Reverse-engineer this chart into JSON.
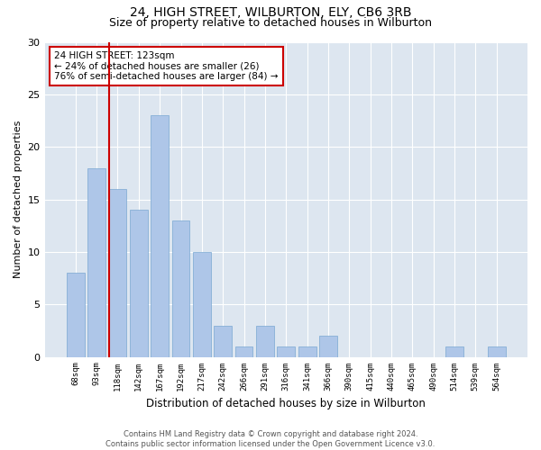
{
  "title": "24, HIGH STREET, WILBURTON, ELY, CB6 3RB",
  "subtitle": "Size of property relative to detached houses in Wilburton",
  "xlabel": "Distribution of detached houses by size in Wilburton",
  "ylabel": "Number of detached properties",
  "bar_values": [
    8,
    18,
    16,
    14,
    23,
    13,
    10,
    3,
    1,
    3,
    1,
    1,
    2,
    0,
    0,
    0,
    0,
    0,
    1,
    0,
    1
  ],
  "bar_labels": [
    "68sqm",
    "93sqm",
    "118sqm",
    "142sqm",
    "167sqm",
    "192sqm",
    "217sqm",
    "242sqm",
    "266sqm",
    "291sqm",
    "316sqm",
    "341sqm",
    "366sqm",
    "390sqm",
    "415sqm",
    "440sqm",
    "465sqm",
    "490sqm",
    "514sqm",
    "539sqm",
    "564sqm"
  ],
  "bar_color": "#aec6e8",
  "bar_edge_color": "#7aa8d2",
  "reference_line_index": 2,
  "reference_line_color": "#cc0000",
  "annotation_text": "24 HIGH STREET: 123sqm\n← 24% of detached houses are smaller (26)\n76% of semi-detached houses are larger (84) →",
  "annotation_box_color": "#cc0000",
  "ylim": [
    0,
    30
  ],
  "yticks": [
    0,
    5,
    10,
    15,
    20,
    25,
    30
  ],
  "bg_color": "#dde6f0",
  "footer_text": "Contains HM Land Registry data © Crown copyright and database right 2024.\nContains public sector information licensed under the Open Government Licence v3.0.",
  "title_fontsize": 10,
  "subtitle_fontsize": 9,
  "grid_color": "#ffffff"
}
